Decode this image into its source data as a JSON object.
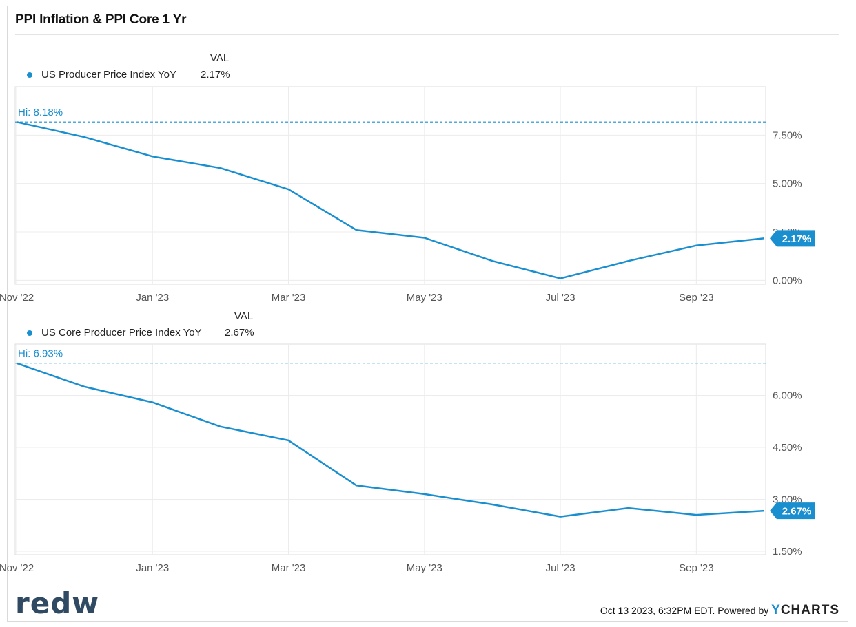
{
  "title": "PPI Inflation & PPI Core 1 Yr",
  "accent_color": "#1a8fd0",
  "legend_value_header": "VAL",
  "chart_data": [
    {
      "type": "line",
      "series": [
        {
          "name": "US Producer Price Index YoY",
          "legend_value": "2.17%",
          "color": "#1a8fd0"
        }
      ],
      "x": [
        "Nov '22",
        "Dec '22",
        "Jan '23",
        "Feb '23",
        "Mar '23",
        "Apr '23",
        "May '23",
        "Jun '23",
        "Jul '23",
        "Aug '23",
        "Sep '23",
        "Oct '23"
      ],
      "values": [
        8.18,
        7.4,
        6.4,
        5.8,
        4.7,
        2.6,
        2.2,
        1.0,
        0.1,
        1.0,
        1.8,
        2.17
      ],
      "x_tick_labels": [
        "Nov '22",
        "Jan '23",
        "Mar '23",
        "May '23",
        "Jul '23",
        "Sep '23"
      ],
      "y_tick_labels": [
        "0.00%",
        "2.50%",
        "5.00%",
        "7.50%"
      ],
      "y_ticks": [
        0,
        2.5,
        5,
        7.5
      ],
      "ylim": [
        -0.2,
        10.0
      ],
      "high_label": "Hi: 8.18%",
      "high_value": 8.18,
      "last_value_label": "2.17%",
      "grid": true,
      "y_axis_side": "right",
      "legend_position": "top-left"
    },
    {
      "type": "line",
      "series": [
        {
          "name": "US Core Producer Price Index YoY",
          "legend_value": "2.67%",
          "color": "#1a8fd0"
        }
      ],
      "x": [
        "Nov '22",
        "Dec '22",
        "Jan '23",
        "Feb '23",
        "Mar '23",
        "Apr '23",
        "May '23",
        "Jun '23",
        "Jul '23",
        "Aug '23",
        "Sep '23",
        "Oct '23"
      ],
      "values": [
        6.93,
        6.25,
        5.8,
        5.1,
        4.7,
        3.4,
        3.15,
        2.85,
        2.5,
        2.75,
        2.55,
        2.67
      ],
      "x_tick_labels": [
        "Nov '22",
        "Jan '23",
        "Mar '23",
        "May '23",
        "Jul '23",
        "Sep '23"
      ],
      "y_tick_labels": [
        "1.50%",
        "3.00%",
        "4.50%",
        "6.00%"
      ],
      "y_ticks": [
        1.5,
        3.0,
        4.5,
        6.0
      ],
      "ylim": [
        1.4,
        7.48
      ],
      "high_label": "Hi: 6.93%",
      "high_value": 6.93,
      "last_value_label": "2.67%",
      "grid": true,
      "y_axis_side": "right",
      "legend_position": "top-left"
    }
  ],
  "footer": {
    "logo_text": "redw",
    "timestamp": "Oct 13 2023, 6:32PM EDT. Powered by",
    "brand_y": "Y",
    "brand_rest": "CHARTS"
  }
}
